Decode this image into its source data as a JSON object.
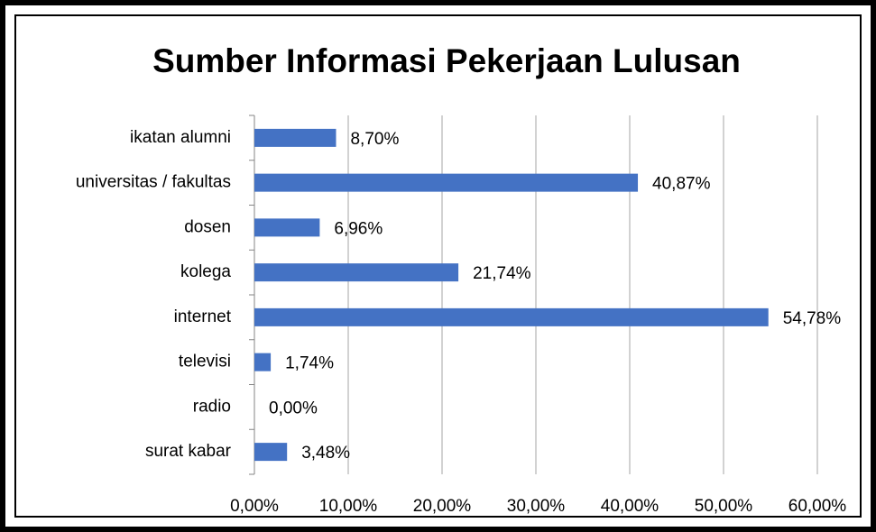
{
  "chart_data": {
    "type": "bar",
    "orientation": "horizontal",
    "title": "Sumber Informasi Pekerjaan Lulusan",
    "categories": [
      "ikatan alumni",
      "universitas / fakultas",
      "dosen",
      "kolega",
      "internet",
      "televisi",
      "radio",
      "surat kabar"
    ],
    "values": [
      8.7,
      40.87,
      6.96,
      21.74,
      54.78,
      1.74,
      0.0,
      3.48
    ],
    "value_labels": [
      "8,70%",
      "40,87%",
      "6,96%",
      "21,74%",
      "54,78%",
      "1,74%",
      "0,00%",
      "3,48%"
    ],
    "color": "#4472c4",
    "xlim": [
      0,
      60
    ],
    "xticks": [
      {
        "value": 0,
        "label": "0,00%"
      },
      {
        "value": 10,
        "label": "10,00%"
      },
      {
        "value": 20,
        "label": "20,00%"
      },
      {
        "value": 30,
        "label": "30,00%"
      },
      {
        "value": 40,
        "label": "40,00%"
      },
      {
        "value": 50,
        "label": "50,00%"
      },
      {
        "value": 60,
        "label": "60,00%"
      }
    ],
    "grid": true
  }
}
